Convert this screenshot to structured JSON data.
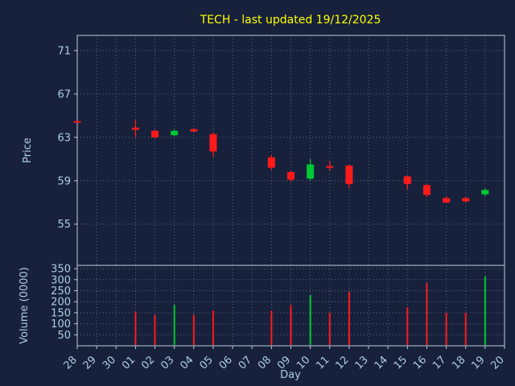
{
  "chart_data": {
    "type": "candlestick",
    "title": "TECH - last updated 19/12/2025",
    "xlabel": "Day",
    "ylabel_price": "Price",
    "ylabel_volume": "Volume (0000)",
    "x_ticks": [
      "28",
      "29",
      "30",
      "01",
      "02",
      "03",
      "04",
      "05",
      "06",
      "07",
      "08",
      "09",
      "10",
      "11",
      "12",
      "13",
      "14",
      "15",
      "16",
      "17",
      "18",
      "19",
      "20"
    ],
    "price_ticks": [
      55,
      59,
      63,
      67,
      71
    ],
    "price_range": [
      51.2,
      72.4
    ],
    "volume_ticks": [
      50,
      100,
      150,
      200,
      250,
      300,
      350
    ],
    "volume_range": [
      0,
      365
    ],
    "grid": true,
    "legend": "none",
    "candles": [
      {
        "day": "28",
        "open": 64.5,
        "high": 64.55,
        "low": 64.4,
        "close": 64.4,
        "volume": 0
      },
      {
        "day": "01",
        "open": 63.9,
        "high": 64.6,
        "low": 63.0,
        "close": 63.7,
        "volume": 155
      },
      {
        "day": "02",
        "open": 63.6,
        "high": 63.7,
        "low": 62.9,
        "close": 63.0,
        "volume": 140
      },
      {
        "day": "03",
        "open": 63.2,
        "high": 63.7,
        "low": 63.1,
        "close": 63.6,
        "volume": 185
      },
      {
        "day": "04",
        "open": 63.75,
        "high": 63.85,
        "low": 63.5,
        "close": 63.55,
        "volume": 140
      },
      {
        "day": "05",
        "open": 63.3,
        "high": 63.4,
        "low": 61.2,
        "close": 61.7,
        "volume": 160
      },
      {
        "day": "08",
        "open": 61.15,
        "high": 61.4,
        "low": 60.0,
        "close": 60.2,
        "volume": 160
      },
      {
        "day": "09",
        "open": 59.8,
        "high": 59.95,
        "low": 58.9,
        "close": 59.1,
        "volume": 185
      },
      {
        "day": "10",
        "open": 59.2,
        "high": 61.0,
        "low": 59.0,
        "close": 60.5,
        "volume": 230
      },
      {
        "day": "11",
        "open": 60.35,
        "high": 60.8,
        "low": 59.9,
        "close": 60.25,
        "volume": 150
      },
      {
        "day": "12",
        "open": 60.4,
        "high": 60.5,
        "low": 58.3,
        "close": 58.7,
        "volume": 245
      },
      {
        "day": "15",
        "open": 59.4,
        "high": 59.5,
        "low": 58.2,
        "close": 58.7,
        "volume": 175
      },
      {
        "day": "16",
        "open": 58.6,
        "high": 58.7,
        "low": 57.5,
        "close": 57.7,
        "volume": 285
      },
      {
        "day": "17",
        "open": 57.4,
        "high": 57.55,
        "low": 56.9,
        "close": 57.0,
        "volume": 150
      },
      {
        "day": "18",
        "open": 57.4,
        "high": 57.5,
        "low": 57.0,
        "close": 57.1,
        "volume": 150
      },
      {
        "day": "19",
        "open": 57.75,
        "high": 58.3,
        "low": 57.6,
        "close": 58.15,
        "volume": 315
      }
    ],
    "colors": {
      "background": "#17213c",
      "up": "#00c832",
      "down": "#ff1a1a",
      "title": "#ffff00",
      "tick_text": "#aecde3",
      "grid": "#5a6880",
      "axis": "#c2cbd8"
    }
  }
}
